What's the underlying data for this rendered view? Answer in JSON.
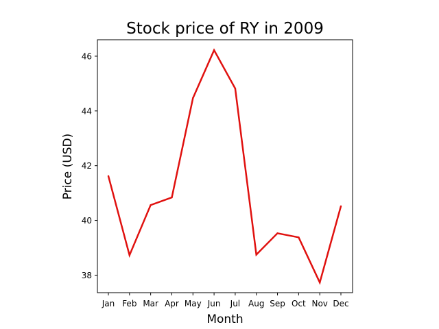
{
  "chart_data": {
    "type": "line",
    "title": "Stock price of RY in 2009",
    "xlabel": "Month",
    "ylabel": "Price (USD)",
    "categories": [
      "Jan",
      "Feb",
      "Mar",
      "Apr",
      "May",
      "Jun",
      "Jul",
      "Aug",
      "Sep",
      "Oct",
      "Nov",
      "Dec"
    ],
    "series": [
      {
        "values": [
          41.62,
          38.73,
          40.56,
          40.84,
          44.47,
          46.22,
          44.82,
          38.75,
          39.53,
          39.38,
          37.73,
          40.52
        ],
        "color": "#e0110f"
      }
    ],
    "yticks": [
      "38",
      "40",
      "42",
      "44",
      "46"
    ],
    "ylim": [
      37.36,
      46.6
    ],
    "grid": false,
    "legend": false
  }
}
